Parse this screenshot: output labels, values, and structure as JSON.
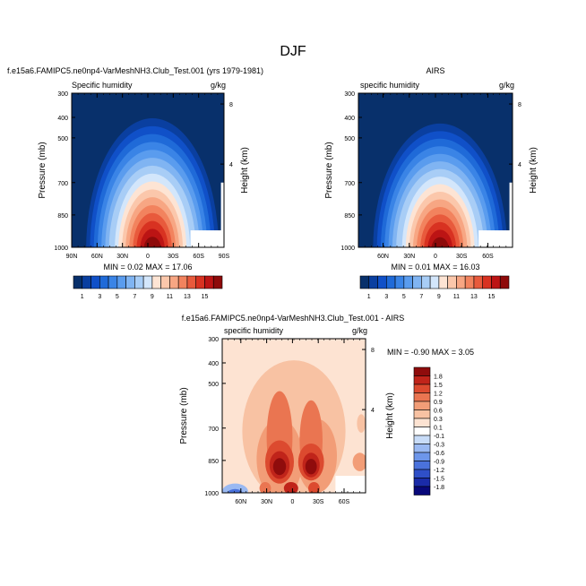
{
  "title": "DJF",
  "colors": {
    "ramp": [
      "#08306b",
      "#0a3fa0",
      "#1050c8",
      "#1f6ad8",
      "#3a84e6",
      "#5a9cee",
      "#80b4f2",
      "#a8cdf6",
      "#d3e6fb",
      "#fde4d4",
      "#fbc7ab",
      "#f7a683",
      "#f2835e",
      "#e85a3c",
      "#d83221",
      "#bc1414",
      "#8e0a0a"
    ],
    "diverging": [
      "#08087a",
      "#1a2ba8",
      "#2f4fc8",
      "#4a72dc",
      "#6d96ea",
      "#9ab9f2",
      "#c8dcf8",
      "#ffffff",
      "#fde3d2",
      "#f8c2a3",
      "#f29d77",
      "#ea7551",
      "#dc4a2f",
      "#c0241a",
      "#8f0c0c"
    ]
  },
  "chart_data": [
    {
      "type": "contour",
      "id": "model",
      "title": "f.e15a6.FAMIPC5.ne0np4-VarMeshNH3.Club_Test.001 (yrs 1979-1981)",
      "left_label": "Specific humidity",
      "units": "g/kg",
      "ylabel": "Pressure (mb)",
      "ylabel_right": "Height (km)",
      "yticks": [
        "300",
        "400",
        "500",
        "700",
        "850",
        "1000"
      ],
      "yticks_right": [
        "8",
        "4"
      ],
      "xticks": [
        "90N",
        "60N",
        "30N",
        "0",
        "30S",
        "60S",
        "90S"
      ],
      "stats": "MIN =  0.02  MAX = 17.06",
      "max_value": 17.06
    },
    {
      "type": "contour",
      "id": "obs",
      "title": "AIRS",
      "left_label": "specific humidity",
      "units": "g/kg",
      "ylabel": "Pressure (mb)",
      "ylabel_right": "Height (km)",
      "yticks": [
        "300",
        "400",
        "500",
        "700",
        "850",
        "1000"
      ],
      "yticks_right": [
        "8",
        "4"
      ],
      "xticks": [
        "60N",
        "30N",
        "0",
        "30S",
        "60S"
      ],
      "stats": "MIN =  0.01  MAX = 16.03",
      "max_value": 16.03
    },
    {
      "type": "contour",
      "id": "diff",
      "title": "f.e15a6.FAMIPC5.ne0np4-VarMeshNH3.Club_Test.001 - AIRS",
      "left_label": "specific humidity",
      "units": "g/kg",
      "ylabel": "Pressure (mb)",
      "ylabel_right": "Height (km)",
      "yticks": [
        "300",
        "400",
        "500",
        "700",
        "850",
        "1000"
      ],
      "yticks_right": [
        "8",
        "4"
      ],
      "xticks": [
        "60N",
        "30N",
        "0",
        "30S",
        "60S"
      ],
      "stats": "MIN = -0.90  MAX =  3.05",
      "max_value": 3.05
    }
  ],
  "colorbar_top": {
    "labels": [
      "1",
      "3",
      "5",
      "7",
      "9",
      "11",
      "13",
      "15"
    ],
    "levels": [
      1,
      2,
      3,
      4,
      5,
      6,
      7,
      8,
      9,
      10,
      11,
      12,
      13,
      14,
      15,
      16
    ]
  },
  "colorbar_diff": {
    "labels": [
      "1.8",
      "1.5",
      "1.2",
      "0.9",
      "0.6",
      "0.3",
      "0.1",
      "-0.1",
      "-0.3",
      "-0.6",
      "-0.9",
      "-1.2",
      "-1.5",
      "-1.8"
    ]
  }
}
